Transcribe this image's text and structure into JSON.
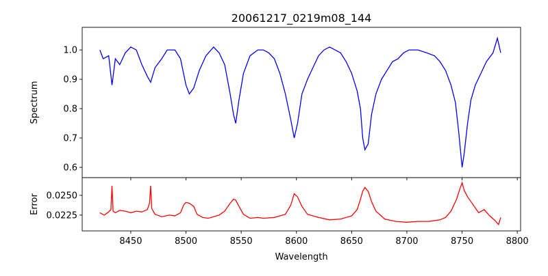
{
  "chart_data": [
    {
      "type": "line",
      "title": "20061217_0219m08_144",
      "xlabel": "",
      "ylabel": "Spectrum",
      "xlim": [
        8406,
        8803
      ],
      "ylim": [
        0.565,
        1.077
      ],
      "xticks": [
        8450,
        8500,
        8550,
        8600,
        8650,
        8700,
        8750,
        8800
      ],
      "yticks": [
        0.6,
        0.7,
        0.8,
        0.9,
        1.0
      ],
      "ytick_labels": [
        "0.6",
        "0.7",
        "0.8",
        "0.9",
        "1.0"
      ],
      "grid": false,
      "series": [
        {
          "name": "Spectrum",
          "color": "#0000ff",
          "x": [
            8422,
            8425,
            8430,
            8433,
            8436,
            8440,
            8445,
            8450,
            8455,
            8460,
            8465,
            8468,
            8472,
            8478,
            8483,
            8490,
            8495,
            8500,
            8503,
            8507,
            8512,
            8518,
            8525,
            8530,
            8535,
            8540,
            8543,
            8545,
            8548,
            8552,
            8558,
            8565,
            8570,
            8575,
            8580,
            8585,
            8590,
            8595,
            8598,
            8601,
            8605,
            8610,
            8615,
            8620,
            8625,
            8630,
            8635,
            8640,
            8645,
            8650,
            8655,
            8658,
            8660,
            8662,
            8665,
            8668,
            8672,
            8677,
            8682,
            8687,
            8692,
            8697,
            8702,
            8710,
            8718,
            8725,
            8730,
            8735,
            8740,
            8744,
            8747,
            8750,
            8752,
            8755,
            8758,
            8762,
            8767,
            8772,
            8778,
            8782,
            8785
          ],
          "y": [
            1.0,
            0.97,
            0.98,
            0.88,
            0.97,
            0.95,
            0.99,
            1.01,
            1.0,
            0.95,
            0.91,
            0.89,
            0.94,
            0.97,
            1.0,
            1.0,
            0.97,
            0.88,
            0.85,
            0.87,
            0.93,
            0.98,
            1.01,
            0.99,
            0.95,
            0.85,
            0.78,
            0.75,
            0.83,
            0.92,
            0.98,
            1.0,
            1.0,
            0.99,
            0.97,
            0.92,
            0.85,
            0.76,
            0.7,
            0.75,
            0.85,
            0.9,
            0.94,
            0.98,
            1.0,
            1.01,
            1.0,
            0.99,
            0.96,
            0.92,
            0.86,
            0.8,
            0.7,
            0.66,
            0.68,
            0.78,
            0.85,
            0.9,
            0.93,
            0.96,
            0.97,
            0.99,
            1.0,
            1.0,
            0.99,
            0.98,
            0.96,
            0.93,
            0.88,
            0.82,
            0.72,
            0.6,
            0.65,
            0.75,
            0.83,
            0.88,
            0.92,
            0.96,
            0.99,
            1.04,
            0.99
          ]
        }
      ]
    },
    {
      "type": "line",
      "xlabel": "Wavelength",
      "ylabel": "Error",
      "xlim": [
        8406,
        8803
      ],
      "ylim": [
        0.0205,
        0.02724
      ],
      "xticks": [
        8450,
        8500,
        8550,
        8600,
        8650,
        8700,
        8750,
        8800
      ],
      "xtick_labels": [
        "8450",
        "8500",
        "8550",
        "8600",
        "8650",
        "8700",
        "8750",
        "8800"
      ],
      "yticks": [
        0.0225,
        0.025
      ],
      "ytick_labels": [
        "0.0225",
        "0.0250"
      ],
      "grid": false,
      "series": [
        {
          "name": "Error",
          "color": "#ff0000",
          "x": [
            8422,
            8426,
            8430,
            8432,
            8433,
            8434,
            8436,
            8440,
            8445,
            8450,
            8455,
            8460,
            8465,
            8467,
            8468,
            8469,
            8472,
            8478,
            8485,
            8490,
            8495,
            8498,
            8500,
            8503,
            8507,
            8510,
            8515,
            8520,
            8525,
            8530,
            8535,
            8540,
            8543,
            8545,
            8548,
            8552,
            8558,
            8565,
            8570,
            8580,
            8590,
            8595,
            8598,
            8601,
            8605,
            8610,
            8620,
            8630,
            8640,
            8650,
            8655,
            8658,
            8660,
            8662,
            8665,
            8668,
            8672,
            8680,
            8690,
            8700,
            8710,
            8720,
            8730,
            8735,
            8740,
            8745,
            8748,
            8750,
            8752,
            8755,
            8760,
            8765,
            8770,
            8775,
            8780,
            8783,
            8785
          ],
          "y": [
            0.0228,
            0.0225,
            0.0229,
            0.0232,
            0.0262,
            0.023,
            0.0228,
            0.0231,
            0.023,
            0.0228,
            0.023,
            0.0229,
            0.0232,
            0.024,
            0.0262,
            0.0233,
            0.0226,
            0.0223,
            0.0225,
            0.0224,
            0.0228,
            0.0238,
            0.0241,
            0.024,
            0.0236,
            0.0226,
            0.0222,
            0.0221,
            0.0223,
            0.0225,
            0.023,
            0.024,
            0.0245,
            0.0244,
            0.0236,
            0.0226,
            0.0221,
            0.0222,
            0.0221,
            0.0222,
            0.0226,
            0.0238,
            0.0252,
            0.0248,
            0.0236,
            0.0226,
            0.0222,
            0.0219,
            0.022,
            0.0224,
            0.0232,
            0.0245,
            0.0255,
            0.026,
            0.0255,
            0.0242,
            0.023,
            0.022,
            0.0217,
            0.0216,
            0.0217,
            0.0217,
            0.0219,
            0.0222,
            0.023,
            0.0245,
            0.0258,
            0.0266,
            0.0256,
            0.0248,
            0.0238,
            0.0228,
            0.0232,
            0.0224,
            0.0218,
            0.0213,
            0.0222
          ]
        }
      ]
    }
  ]
}
